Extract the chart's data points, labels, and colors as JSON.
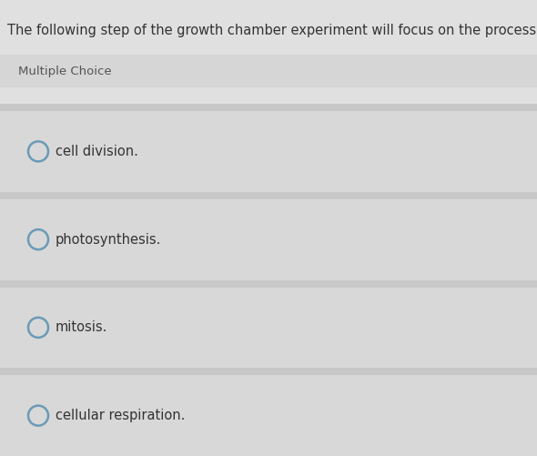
{
  "question": "The following step of the growth chamber experiment will focus on the process of",
  "label": "Multiple Choice",
  "choices": [
    "cell division.",
    "photosynthesis.",
    "mitosis.",
    "cellular respiration."
  ],
  "bg_main": "#e4e4e4",
  "bg_question": "#e0e0e0",
  "bg_label_row": "#d6d6d6",
  "bg_gap": "#e0e0e0",
  "bg_choice": "#d8d8d8",
  "bg_separator": "#c8c8c8",
  "circle_color": "#6b9ab8",
  "text_color": "#333333",
  "label_text_color": "#555555",
  "question_fontsize": 10.5,
  "label_fontsize": 9.5,
  "choice_fontsize": 10.5,
  "fig_width": 5.9,
  "fig_height": 5.01,
  "dpi": 100
}
